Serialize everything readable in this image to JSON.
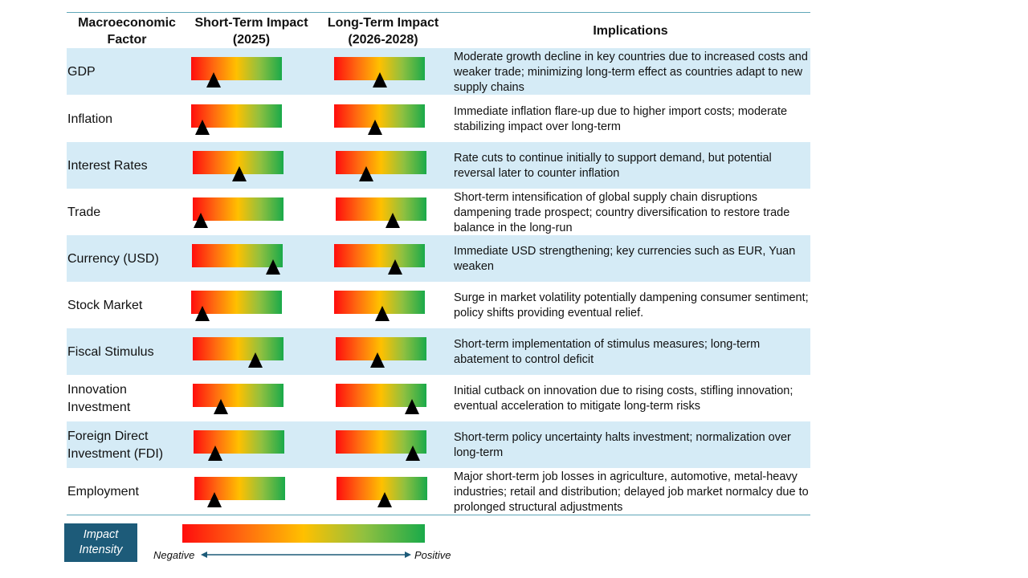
{
  "header": {
    "factor": "Macroeconomic Factor",
    "short_term": "Short-Term Impact (2025)",
    "long_term": "Long-Term Impact (2026-2028)",
    "implications": "Implications"
  },
  "rows": [
    {
      "factor": "GDP",
      "short": 0.25,
      "long": 0.5,
      "implication": "Moderate growth decline in key countries due to increased costs and weaker trade; minimizing long-term effect as countries adapt to new supply chains"
    },
    {
      "factor": "Inflation",
      "short": 0.12,
      "long": 0.45,
      "implication": "Immediate inflation flare-up due to higher import costs; moderate stabilizing impact over long-term"
    },
    {
      "factor": "Interest Rates",
      "short": 0.51,
      "long": 0.34,
      "implication": "Rate cuts to continue initially to support demand, but potential reversal later to counter inflation"
    },
    {
      "factor": "Trade",
      "short": 0.09,
      "long": 0.63,
      "implication": "Short-term intensification of global supply chain disruptions dampening trade prospect; country diversification to restore trade balance in the long-run"
    },
    {
      "factor": "Currency (USD)",
      "short": 0.89,
      "long": 0.67,
      "implication": "Immediate USD strengthening; key currencies such as EUR, Yuan weaken"
    },
    {
      "factor": "Stock Market",
      "short": 0.12,
      "long": 0.53,
      "implication": "Surge in market volatility potentially dampening consumer sentiment; policy shifts providing eventual relief."
    },
    {
      "factor": "Fiscal Stimulus",
      "short": 0.69,
      "long": 0.46,
      "implication": "Short-term implementation of stimulus measures; long-term abatement to control deficit"
    },
    {
      "factor": "Innovation Investment",
      "short": 0.31,
      "long": 0.84,
      "implication": "Initial cutback on innovation due to rising costs, stifling innovation; eventual acceleration to mitigate long-term risks"
    },
    {
      "factor": "Foreign Direct Investment (FDI)",
      "short": 0.24,
      "long": 0.85,
      "implication": "Short-term policy uncertainty halts investment; normalization over long-term"
    },
    {
      "factor": "Employment",
      "short": 0.22,
      "long": 0.53,
      "implication": "Major short-term job losses in agriculture, automotive, metal-heavy industries; retail and distribution; delayed job market normalcy due to prolonged structural adjustments"
    }
  ],
  "legend": {
    "title": "Impact Intensity",
    "negative": "Negative",
    "positive": "Positive"
  },
  "colors": {
    "row_alt": "#d5ebf6",
    "rule": "#5fa6b8",
    "legend_box": "#1d5b79",
    "gradient": [
      "#ff0d0d",
      "#ff6a10",
      "#ffc000",
      "#90c040",
      "#1aaa4a"
    ]
  }
}
